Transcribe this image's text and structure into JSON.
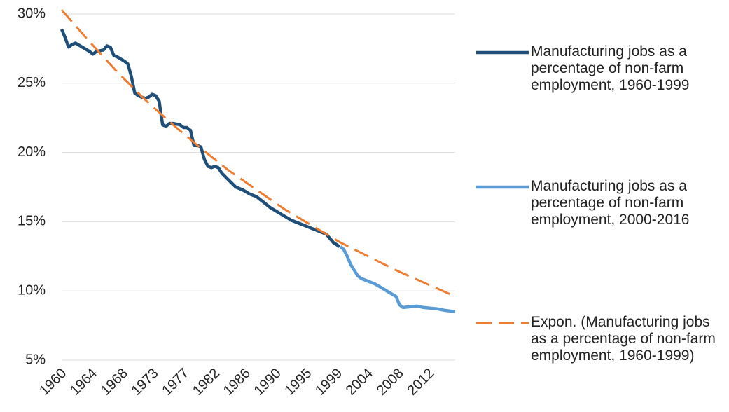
{
  "chart_data": {
    "type": "line",
    "series": [
      {
        "name": "Manufacturing jobs as a percentage of non-farm employment, 1960-1999",
        "color": "#1f4e79",
        "dash": false,
        "x": [
          1960,
          1960.5,
          1961,
          1961.5,
          1962,
          1963,
          1964,
          1964.5,
          1965,
          1966,
          1966.5,
          1967,
          1967.5,
          1968,
          1969,
          1969.5,
          1970,
          1970.5,
          1971,
          1972,
          1972.5,
          1973,
          1973.5,
          1974,
          1974.5,
          1975,
          1975.5,
          1976,
          1977,
          1977.5,
          1978,
          1978.5,
          1979,
          1979.5,
          1980,
          1980.5,
          1981,
          1981.5,
          1982,
          1982.5,
          1983,
          1984,
          1985,
          1986,
          1987,
          1988,
          1989,
          1990,
          1991,
          1992,
          1993,
          1994,
          1995,
          1996,
          1997,
          1998,
          1999,
          1999.9
        ],
        "values": [
          28.9,
          28.3,
          27.6,
          27.8,
          27.9,
          27.6,
          27.3,
          27.1,
          27.3,
          27.4,
          27.7,
          27.6,
          27.0,
          26.9,
          26.6,
          26.4,
          25.5,
          24.3,
          24.1,
          23.9,
          24.0,
          24.2,
          24.1,
          23.7,
          22.0,
          21.9,
          22.1,
          22.1,
          22.0,
          21.8,
          21.8,
          21.6,
          20.5,
          20.5,
          20.4,
          19.5,
          19.0,
          18.9,
          19.0,
          18.9,
          18.5,
          18.0,
          17.5,
          17.3,
          17.0,
          16.8,
          16.4,
          16.0,
          15.7,
          15.4,
          15.1,
          14.9,
          14.7,
          14.5,
          14.3,
          14.1,
          13.5,
          13.2
        ]
      },
      {
        "name": "Manufacturing jobs as a percentage of non-farm employment, 2000-2016",
        "color": "#5b9bd5",
        "dash": false,
        "x": [
          2000,
          2000.5,
          2001,
          2001.5,
          2002,
          2002.5,
          2003,
          2004,
          2005,
          2006,
          2007,
          2008,
          2008.5,
          2009,
          2010,
          2011,
          2012,
          2013,
          2014,
          2015,
          2016.5
        ],
        "values": [
          13.2,
          13.0,
          12.5,
          11.9,
          11.5,
          11.1,
          10.9,
          10.7,
          10.5,
          10.2,
          9.9,
          9.6,
          9.0,
          8.8,
          8.85,
          8.9,
          8.8,
          8.75,
          8.7,
          8.6,
          8.5
        ]
      },
      {
        "name": "Expon. (Manufacturing jobs as a percentage of non-farm employment, 1960-1999)",
        "color": "#ed7d31",
        "dash": true,
        "x": [
          1960,
          1964,
          1968,
          1972,
          1976,
          1980,
          1984,
          1988,
          1992,
          1996,
          2000,
          2004,
          2008,
          2012,
          2016.5
        ],
        "values": [
          30.3,
          28.0,
          25.8,
          23.8,
          22.0,
          20.3,
          18.7,
          17.3,
          15.9,
          14.7,
          13.5,
          12.5,
          11.5,
          10.6,
          9.6
        ]
      }
    ],
    "xlim": [
      1960,
      2016.5
    ],
    "xticks": [
      {
        "value": 1960,
        "label": "1960"
      },
      {
        "value": 1964.4,
        "label": "1964"
      },
      {
        "value": 1968.8,
        "label": "1968"
      },
      {
        "value": 1973.2,
        "label": "1973"
      },
      {
        "value": 1977.6,
        "label": "1977"
      },
      {
        "value": 1982,
        "label": "1982"
      },
      {
        "value": 1986.4,
        "label": "1986"
      },
      {
        "value": 1990.8,
        "label": "1990"
      },
      {
        "value": 1995.2,
        "label": "1995"
      },
      {
        "value": 1999.6,
        "label": "1999"
      },
      {
        "value": 2004,
        "label": "2004"
      },
      {
        "value": 2008.4,
        "label": "2008"
      },
      {
        "value": 2012.8,
        "label": "2012"
      }
    ],
    "ylim": [
      5,
      30
    ],
    "yticks": [
      {
        "value": 5,
        "label": "5%"
      },
      {
        "value": 10,
        "label": "10%"
      },
      {
        "value": 15,
        "label": "15%"
      },
      {
        "value": 20,
        "label": "20%"
      },
      {
        "value": 25,
        "label": "25%"
      },
      {
        "value": 30,
        "label": "30%"
      }
    ],
    "grid": true,
    "legend": "right"
  }
}
